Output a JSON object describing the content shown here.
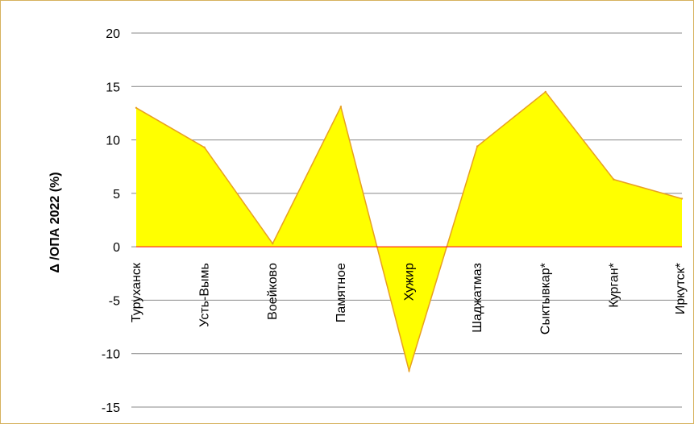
{
  "chart_data": {
    "type": "area",
    "categories": [
      "Туруханск",
      "Усть-Вымь",
      "Воейково",
      "Памятное",
      "Хужир",
      "Шаджатмаз",
      "Сыктывкар*",
      "Курган*",
      "Иркутск*"
    ],
    "values": [
      13.0,
      9.3,
      0.3,
      13.1,
      -11.6,
      9.4,
      14.5,
      6.3,
      4.5
    ],
    "title": "",
    "xlabel": "",
    "ylabel": "Δ /ОПА 2022 (%)",
    "ylim": [
      -15,
      20
    ],
    "yticks": [
      -15,
      -10,
      -5,
      0,
      5,
      10,
      15,
      20
    ],
    "grid": true,
    "legend": "none",
    "colors": {
      "fill": "#ffff00",
      "line": "#e8a020",
      "grid": "#888888",
      "zero_line": "#ff0000",
      "border": "#d6b25e"
    }
  }
}
